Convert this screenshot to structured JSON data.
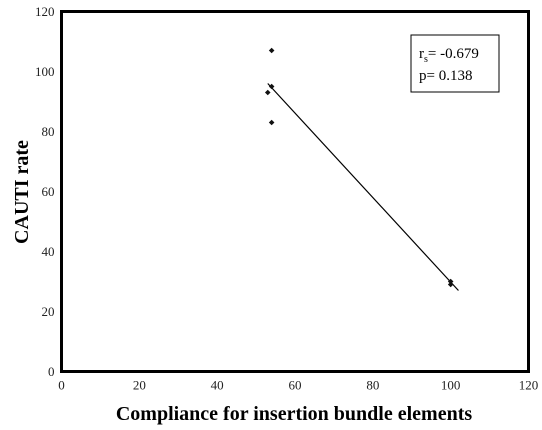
{
  "chart_data": {
    "type": "scatter",
    "title": "",
    "xlabel": "Compliance for insertion bundle elements",
    "ylabel": "CAUTI rate",
    "xlim": [
      0,
      120
    ],
    "ylim": [
      0,
      120
    ],
    "x_ticks": [
      "0",
      "20",
      "40",
      "60",
      "80",
      "100",
      "120"
    ],
    "y_ticks": [
      "0",
      "20",
      "40",
      "60",
      "80",
      "100",
      "120"
    ],
    "grid": false,
    "points": [
      {
        "x": 54,
        "y": 107
      },
      {
        "x": 54,
        "y": 95
      },
      {
        "x": 53,
        "y": 93
      },
      {
        "x": 54,
        "y": 83
      },
      {
        "x": 100,
        "y": 30
      },
      {
        "x": 100,
        "y": 29
      }
    ],
    "trendline": {
      "x": [
        53,
        102
      ],
      "y": [
        96,
        27
      ]
    },
    "annotation": {
      "rs_prefix": "r",
      "rs_sub": "s",
      "rs_value": "= -0.679",
      "p_line": "p=  0.138"
    }
  }
}
